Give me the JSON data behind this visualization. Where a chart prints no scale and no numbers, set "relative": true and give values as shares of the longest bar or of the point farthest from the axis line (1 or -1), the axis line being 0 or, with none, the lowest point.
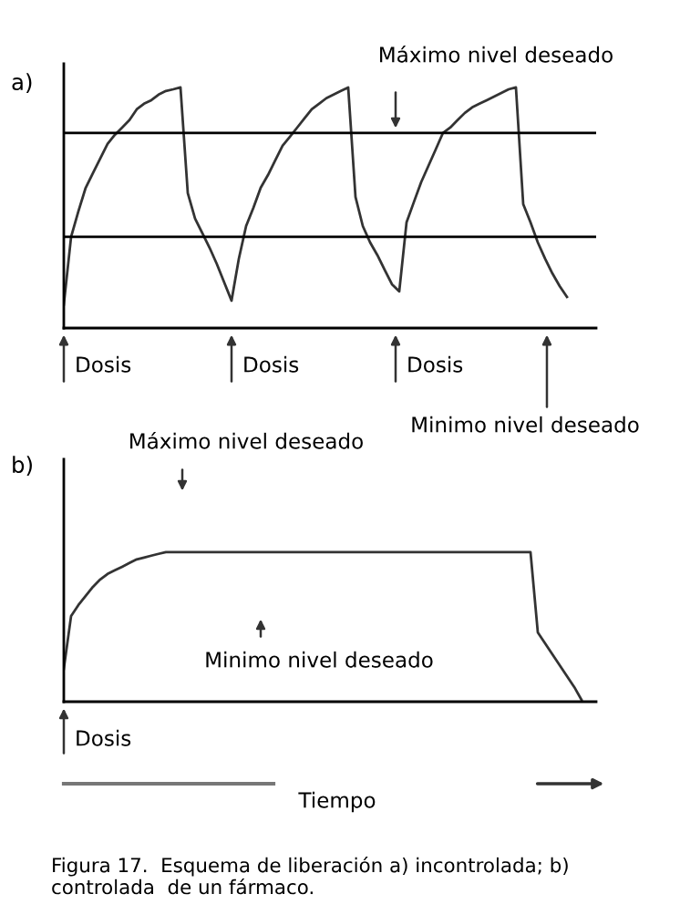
{
  "chart_data": [
    {
      "type": "line",
      "title": "a)",
      "relative": true,
      "legend": false,
      "marker": "none",
      "line_style": "solid",
      "categories": [
        null,
        null,
        null,
        null,
        null,
        null,
        null,
        null,
        null,
        null,
        null,
        null,
        null,
        null,
        null,
        null,
        null,
        null,
        null,
        null,
        null,
        null,
        null,
        null,
        null,
        null,
        null,
        null,
        null,
        null,
        null,
        null,
        null,
        null,
        null,
        null,
        null,
        null,
        null,
        null,
        null,
        null,
        null,
        null,
        null,
        null,
        null,
        null,
        null,
        null,
        null,
        null,
        null,
        null,
        null,
        null,
        null,
        null,
        null,
        null,
        null,
        null,
        null,
        null,
        null,
        null,
        null,
        null,
        null,
        null,
        null,
        null,
        null,
        null
      ],
      "series": [
        {
          "color": "#333333",
          "values": [
            0.098,
            0.379,
            0.485,
            0.583,
            0.644,
            0.705,
            0.765,
            0.803,
            0.833,
            0.864,
            0.909,
            0.932,
            0.947,
            0.97,
            0.985,
            0.992,
            1,
            0.561,
            0.455,
            0.394,
            0.333,
            0.265,
            0.189,
            0.114,
            0.288,
            0.424,
            0.5,
            0.583,
            0.636,
            0.697,
            0.758,
            0.795,
            0.833,
            0.871,
            0.909,
            0.932,
            0.955,
            0.97,
            0.985,
            1,
            0.545,
            0.424,
            0.356,
            0.303,
            0.242,
            0.182,
            0.152,
            0.439,
            0.523,
            0.606,
            0.674,
            0.742,
            0.811,
            0.833,
            0.864,
            0.894,
            0.917,
            0.932,
            0.947,
            0.962,
            0.977,
            0.992,
            1,
            0.515,
            0.439,
            0.356,
            0.288,
            0.227,
            0.174,
            0.129,
            null,
            null,
            null,
            null
          ]
        }
      ],
      "ref_lines": [
        {
          "axis": "y",
          "value": 0.811,
          "color": "#000000",
          "line_style": "solid"
        },
        {
          "axis": "y",
          "value": 0.379,
          "color": "#000000",
          "line_style": "solid"
        }
      ],
      "annotations": [
        "Máximo nivel deseado",
        "Dosis",
        "Dosis",
        "Dosis",
        "Minimo nivel deseado"
      ]
    },
    {
      "type": "line",
      "title": "b)",
      "xlabel": "Tiempo",
      "relative": true,
      "legend": false,
      "marker": "none",
      "line_style": "solid",
      "categories": [
        null,
        null,
        null,
        null,
        null,
        null,
        null,
        null,
        null,
        null,
        null,
        null,
        null,
        null,
        null,
        null,
        null,
        null,
        null,
        null,
        null,
        null,
        null,
        null,
        null,
        null,
        null,
        null,
        null,
        null,
        null,
        null,
        null,
        null,
        null,
        null,
        null,
        null,
        null,
        null,
        null,
        null,
        null,
        null,
        null,
        null,
        null,
        null,
        null,
        null,
        null,
        null,
        null,
        null,
        null,
        null,
        null,
        null,
        null,
        null,
        null,
        null,
        null,
        null,
        null,
        null,
        null,
        null,
        null,
        null,
        null,
        null,
        null,
        null
      ],
      "series": [
        {
          "color": "#333333",
          "values": [
            0.22,
            0.573,
            0.646,
            0.707,
            0.768,
            0.817,
            0.854,
            0.878,
            0.902,
            0.927,
            0.951,
            0.963,
            0.976,
            0.988,
            1,
            1,
            1,
            1,
            1,
            1,
            1,
            1,
            1,
            1,
            1,
            1,
            1,
            1,
            1,
            1,
            1,
            1,
            1,
            1,
            1,
            1,
            1,
            1,
            1,
            1,
            1,
            1,
            1,
            1,
            1,
            1,
            1,
            1,
            1,
            1,
            1,
            1,
            1,
            1,
            1,
            1,
            1,
            1,
            1,
            1,
            1,
            1,
            1,
            1,
            1,
            0.463,
            0.39,
            0.317,
            0.244,
            0.171,
            0.098,
            0.012,
            null,
            null
          ]
        }
      ],
      "annotations": [
        "Máximo nivel deseado",
        "Minimo nivel deseado",
        "Dosis",
        "Figura 17.  Esquema de liberación a) incontrolada; b) controlada  de un fármaco."
      ]
    }
  ]
}
